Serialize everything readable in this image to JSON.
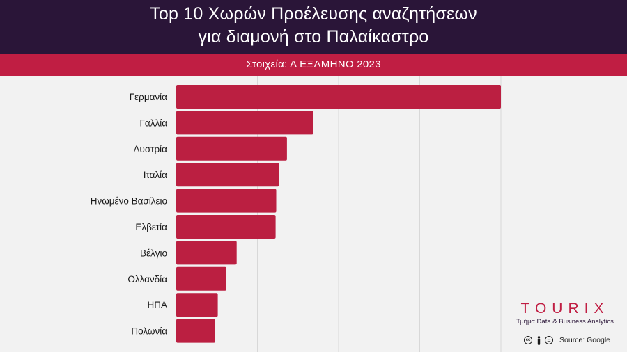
{
  "header": {
    "title_line1": "Top 10 Χωρών Προέλευσης αναζητήσεων",
    "title_line2": "για διαμονή στο Παλαίκαστρο",
    "subtitle": "Στοιχεία: Α ΕΞΑΜΗΝΟ 2023"
  },
  "colors": {
    "header_bg": "#2a1538",
    "accent": "#c01e43",
    "bar": "#bb1f41",
    "background": "#f2f2f2",
    "grid": "#d8d8d8"
  },
  "chart_data": {
    "type": "bar",
    "orientation": "horizontal",
    "title": "Top 10 Χωρών Προέλευσης αναζητήσεων για διαμονή στο Παλαίκαστρο",
    "subtitle": "Στοιχεία: Α ΕΞΑΜΗΝΟ 2023",
    "categories": [
      "Γερμανία",
      "Γαλλία",
      "Αυστρία",
      "Ιταλία",
      "Ηνωμένο Βασίλειο",
      "Ελβετία",
      "Βέλγιο",
      "Ολλανδία",
      "ΗΠΑ",
      "Πολωνία"
    ],
    "values": [
      100,
      42.2,
      34.1,
      31.6,
      30.8,
      30.6,
      18.6,
      15.4,
      12.8,
      12.0
    ],
    "xlim": [
      0,
      100
    ],
    "grid": true,
    "legend": "none"
  },
  "branding": {
    "logo_text": "TOURIX",
    "logo_subtitle": "Τμήμα Data & Business Analytics",
    "license_icons": [
      "cc-icon",
      "by-icon",
      "nd-icon"
    ],
    "source": "Source: Google"
  }
}
